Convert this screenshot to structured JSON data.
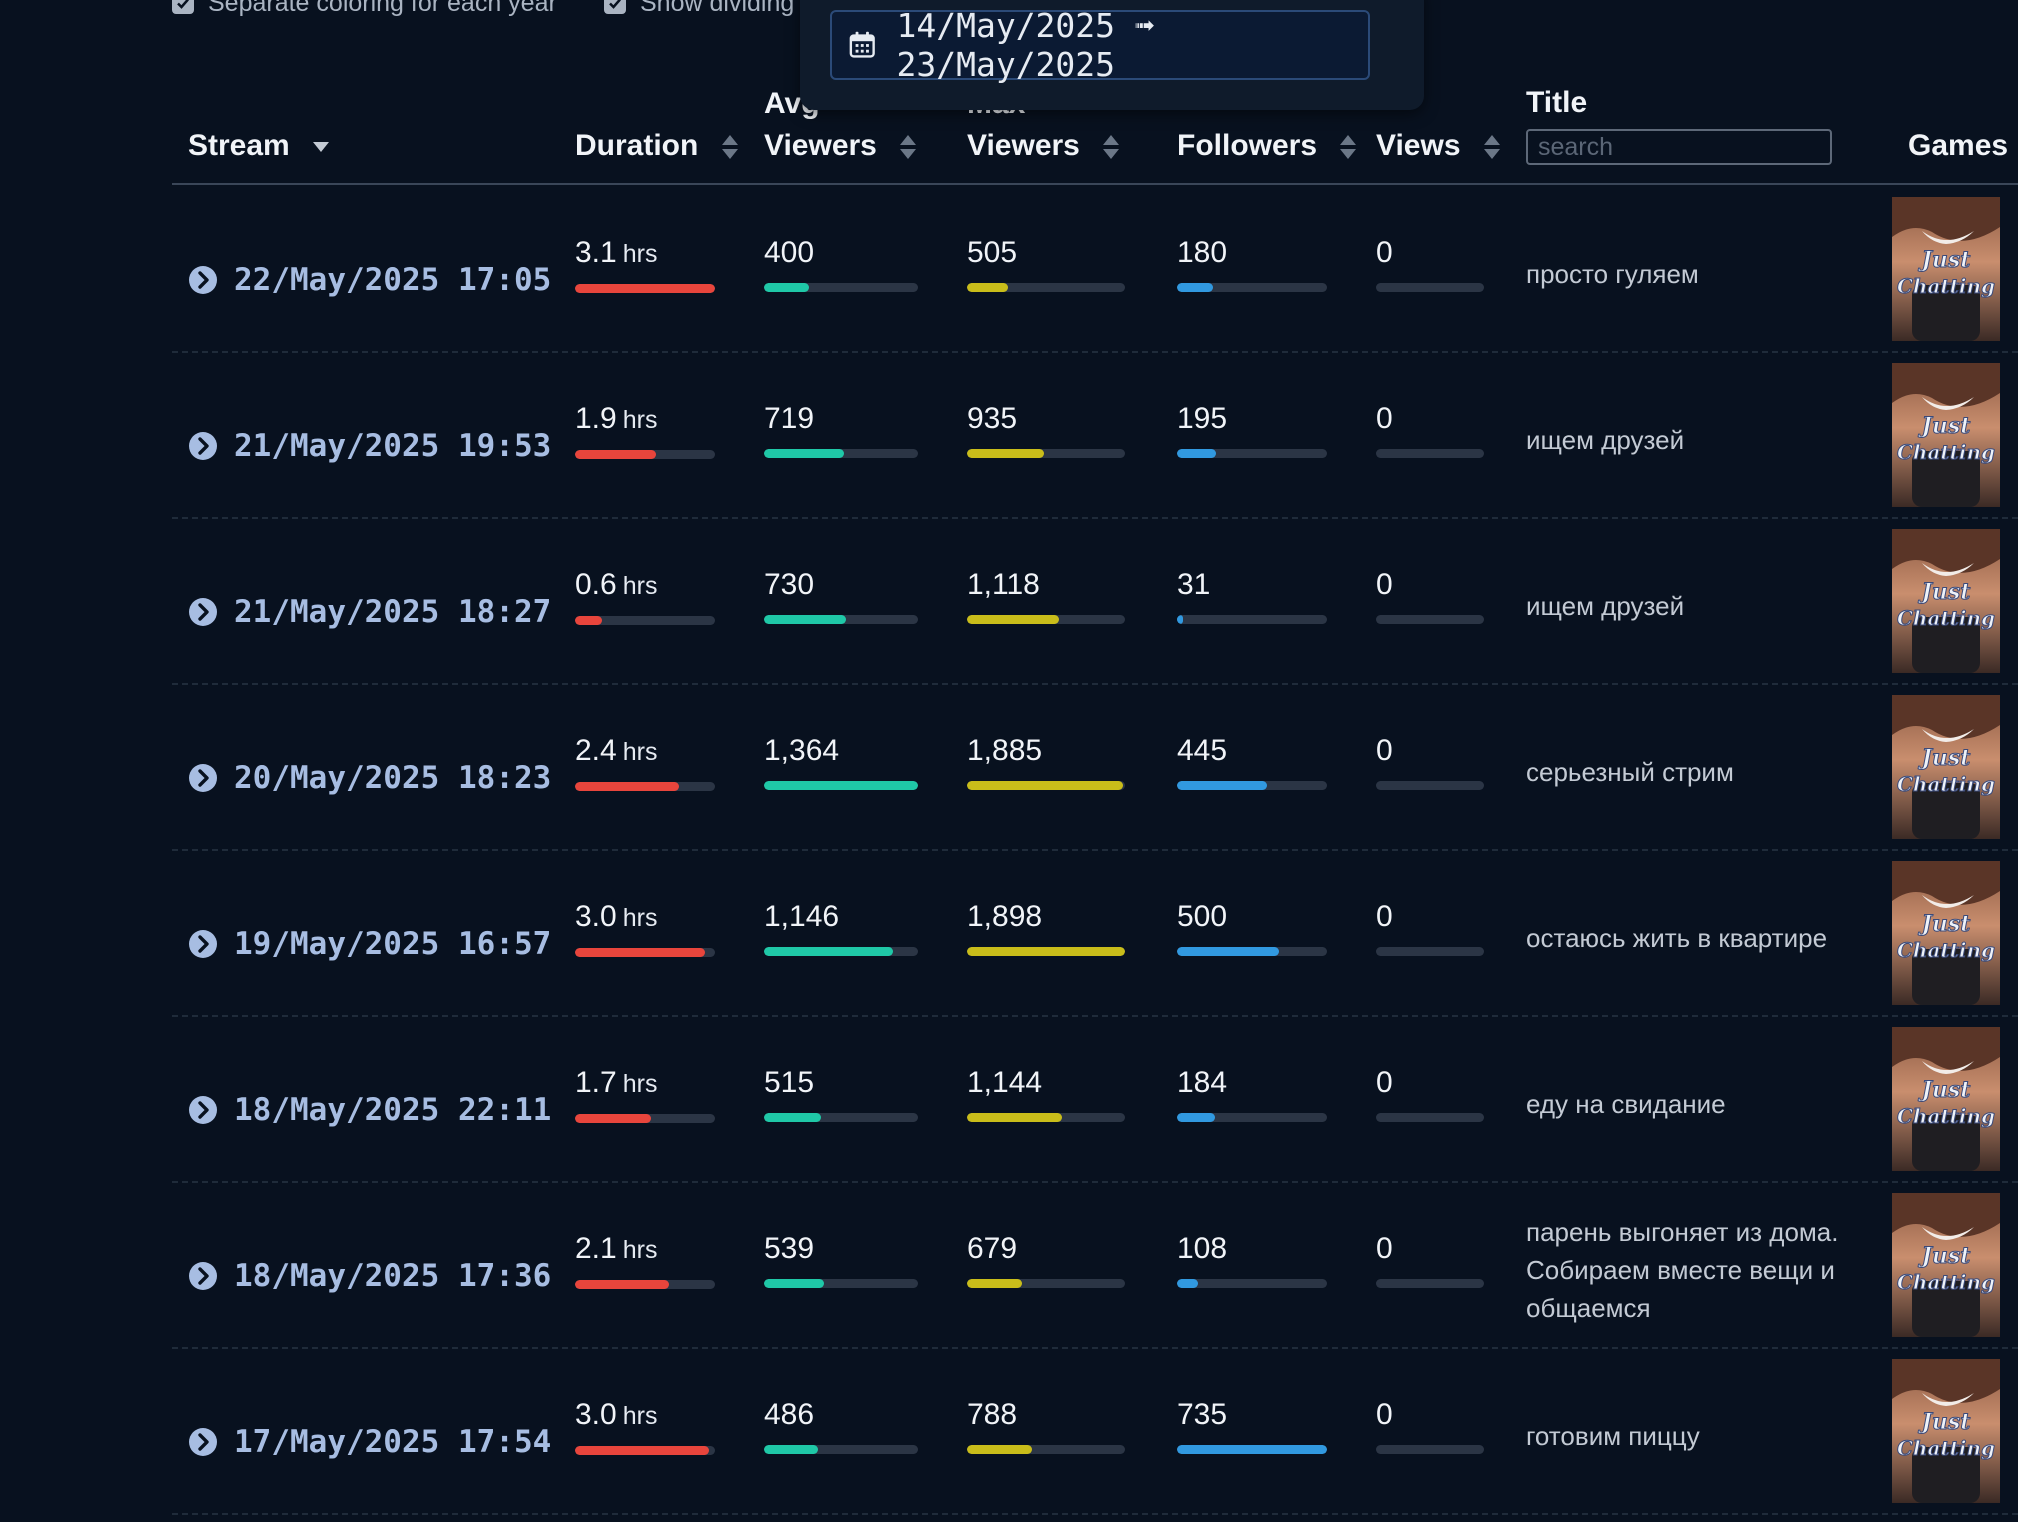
{
  "options": {
    "separate_coloring": "Separate coloring for each year",
    "show_dividing": "Show dividing"
  },
  "date_range": {
    "text": "14/May/2025 ➟ 23/May/2025"
  },
  "columns": {
    "stream": "Stream",
    "duration": "Duration",
    "avg_viewers_top": "Avg",
    "avg_viewers_bottom": "Viewers",
    "max_viewers_top": "Max",
    "max_viewers_bottom": "Viewers",
    "followers": "Followers",
    "views": "Views",
    "title": "Title",
    "games": "Games"
  },
  "title_search": {
    "placeholder": "search"
  },
  "colors": {
    "duration": "#e8453c",
    "avg_viewers": "#1fc8a7",
    "max_viewers": "#c9bd1a",
    "followers": "#3199e0",
    "views": "#6b7787"
  },
  "duration_unit": "hrs",
  "game": "Just Chatting",
  "rows": [
    {
      "stream": "22/May/2025 17:05",
      "duration": "3.1",
      "duration_pct": 1.0,
      "avg": "400",
      "avg_pct": 0.29,
      "max": "505",
      "max_pct": 0.26,
      "followers": "180",
      "followers_pct": 0.24,
      "views": "0",
      "title": "просто гуляем"
    },
    {
      "stream": "21/May/2025 19:53",
      "duration": "1.9",
      "duration_pct": 0.58,
      "avg": "719",
      "avg_pct": 0.52,
      "max": "935",
      "max_pct": 0.49,
      "followers": "195",
      "followers_pct": 0.26,
      "views": "0",
      "title": "ищем друзей"
    },
    {
      "stream": "21/May/2025 18:27",
      "duration": "0.6",
      "duration_pct": 0.19,
      "avg": "730",
      "avg_pct": 0.53,
      "max": "1,118",
      "max_pct": 0.58,
      "followers": "31",
      "followers_pct": 0.04,
      "views": "0",
      "title": "ищем друзей"
    },
    {
      "stream": "20/May/2025 18:23",
      "duration": "2.4",
      "duration_pct": 0.74,
      "avg": "1,364",
      "avg_pct": 1.0,
      "max": "1,885",
      "max_pct": 0.99,
      "followers": "445",
      "followers_pct": 0.6,
      "views": "0",
      "title": "серьезный стрим"
    },
    {
      "stream": "19/May/2025 16:57",
      "duration": "3.0",
      "duration_pct": 0.93,
      "avg": "1,146",
      "avg_pct": 0.84,
      "max": "1,898",
      "max_pct": 1.0,
      "followers": "500",
      "followers_pct": 0.68,
      "views": "0",
      "title": "остаюсь жить в квартире"
    },
    {
      "stream": "18/May/2025 22:11",
      "duration": "1.7",
      "duration_pct": 0.54,
      "avg": "515",
      "avg_pct": 0.37,
      "max": "1,144",
      "max_pct": 0.6,
      "followers": "184",
      "followers_pct": 0.25,
      "views": "0",
      "title": "еду на свидание"
    },
    {
      "stream": "18/May/2025 17:36",
      "duration": "2.1",
      "duration_pct": 0.67,
      "avg": "539",
      "avg_pct": 0.39,
      "max": "679",
      "max_pct": 0.35,
      "followers": "108",
      "followers_pct": 0.14,
      "views": "0",
      "title": "парень выгоняет из дома. Собираем вместе вещи и общаемся"
    },
    {
      "stream": "17/May/2025 17:54",
      "duration": "3.0",
      "duration_pct": 0.96,
      "avg": "486",
      "avg_pct": 0.35,
      "max": "788",
      "max_pct": 0.41,
      "followers": "735",
      "followers_pct": 1.0,
      "views": "0",
      "title": "готовим пиццу"
    }
  ]
}
